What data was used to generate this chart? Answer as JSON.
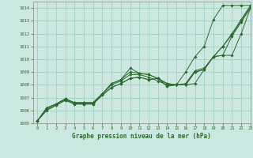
{
  "xlabel": "Graphe pression niveau de la mer (hPa)",
  "ylim": [
    1005,
    1014.5
  ],
  "xlim": [
    -0.5,
    23
  ],
  "yticks": [
    1005,
    1006,
    1007,
    1008,
    1009,
    1010,
    1011,
    1012,
    1013,
    1014
  ],
  "xticks": [
    0,
    1,
    2,
    3,
    4,
    5,
    6,
    7,
    8,
    9,
    10,
    11,
    12,
    13,
    14,
    15,
    16,
    17,
    18,
    19,
    20,
    21,
    22,
    23
  ],
  "bg_color": "#cce8e0",
  "grid_color": "#99ccbb",
  "line_color": "#2d6a2d",
  "lines": [
    [
      1005.2,
      1006.2,
      1006.5,
      1006.9,
      1006.6,
      1006.6,
      1006.6,
      1007.3,
      1008.1,
      1008.4,
      1009.3,
      1008.9,
      1008.8,
      1008.5,
      1008.1,
      1008.0,
      1009.0,
      1010.2,
      1011.0,
      1013.1,
      1014.2,
      1014.2,
      1014.2,
      1014.2
    ],
    [
      1005.2,
      1006.2,
      1006.5,
      1006.9,
      1006.6,
      1006.6,
      1006.6,
      1007.3,
      1008.1,
      1008.4,
      1009.0,
      1008.9,
      1008.8,
      1008.5,
      1008.1,
      1008.0,
      1008.1,
      1009.1,
      1009.3,
      1010.2,
      1011.0,
      1012.0,
      1013.1,
      1014.2
    ],
    [
      1005.2,
      1006.2,
      1006.5,
      1006.9,
      1006.6,
      1006.6,
      1006.6,
      1007.3,
      1008.0,
      1008.3,
      1008.8,
      1008.8,
      1008.6,
      1008.3,
      1008.0,
      1008.0,
      1008.0,
      1009.0,
      1009.2,
      1010.2,
      1011.0,
      1011.9,
      1013.0,
      1014.1
    ],
    [
      1005.2,
      1006.1,
      1006.4,
      1006.8,
      1006.5,
      1006.5,
      1006.5,
      1007.2,
      1007.8,
      1008.1,
      1008.5,
      1008.6,
      1008.4,
      1008.5,
      1007.9,
      1008.0,
      1008.0,
      1009.0,
      1009.2,
      1010.2,
      1010.3,
      1011.8,
      1012.9,
      1014.0
    ],
    [
      1005.2,
      1006.0,
      1006.4,
      1006.8,
      1006.5,
      1006.5,
      1006.5,
      1007.2,
      1007.8,
      1008.1,
      1008.5,
      1008.6,
      1008.4,
      1008.5,
      1007.9,
      1008.0,
      1008.0,
      1008.1,
      1009.2,
      1010.2,
      1010.3,
      1010.3,
      1012.0,
      1014.0
    ]
  ]
}
